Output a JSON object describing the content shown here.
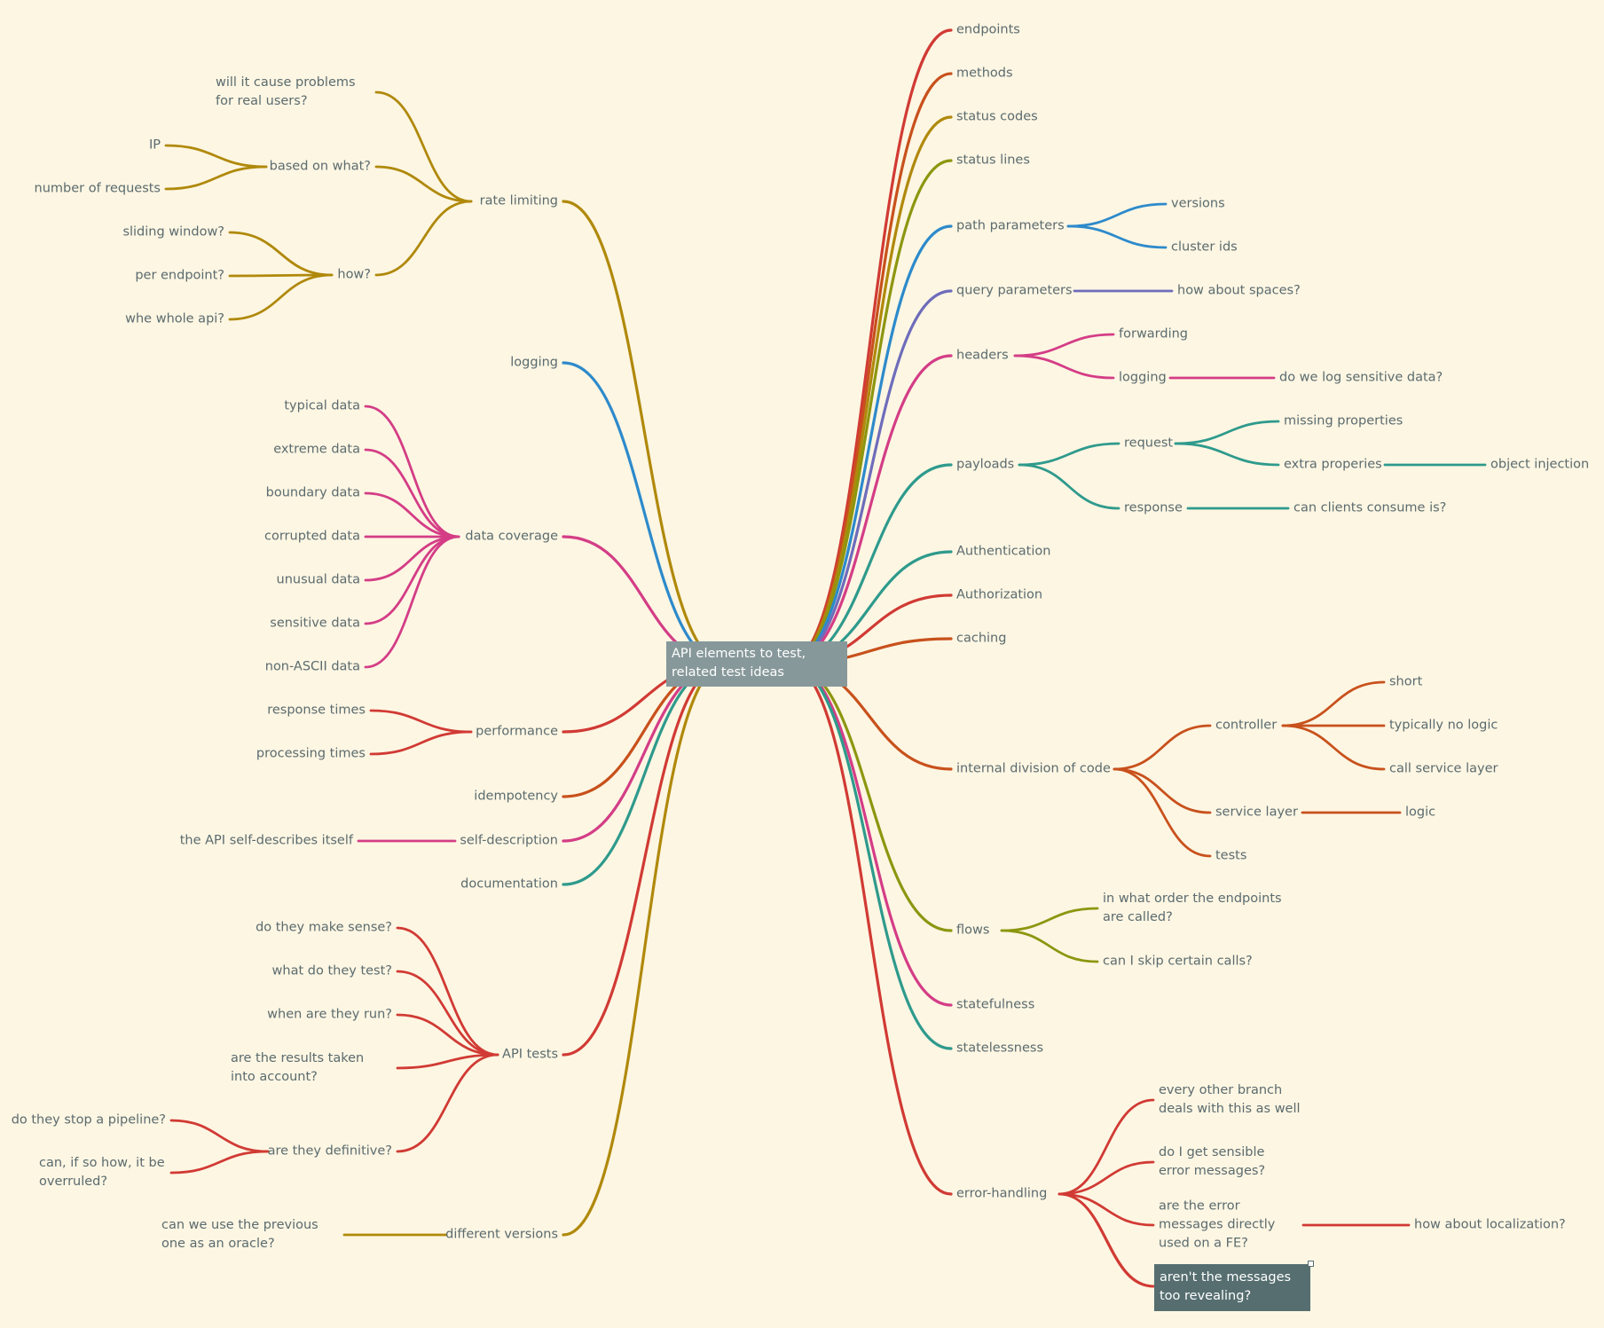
{
  "root": "API elements to test, related test ideas",
  "selected_node": "aren't the messages too revealing?",
  "colors": {
    "background": "#fdf6e3",
    "red": "#d13a34",
    "orange": "#c8511c",
    "gold": "#b0890b",
    "olive": "#8d960f",
    "blue": "#2d8acb",
    "purple": "#6e6cbb",
    "pink": "#d43d86",
    "teal": "#2e9a8c",
    "text": "#5b6b6e",
    "root_fill": "#87989a",
    "selected_fill": "#566e70"
  },
  "right_branches": [
    {
      "label": "endpoints",
      "color": "red"
    },
    {
      "label": "methods",
      "color": "orange"
    },
    {
      "label": "status codes",
      "color": "gold"
    },
    {
      "label": "status lines",
      "color": "olive"
    },
    {
      "label": "path parameters",
      "color": "blue",
      "children": [
        {
          "label": "versions"
        },
        {
          "label": "cluster ids"
        }
      ]
    },
    {
      "label": "query parameters",
      "color": "purple",
      "children": [
        {
          "label": "how about spaces?"
        }
      ]
    },
    {
      "label": "headers",
      "color": "pink",
      "children": [
        {
          "label": "forwarding"
        },
        {
          "label": "logging",
          "children": [
            {
              "label": "do we log sensitive data?"
            }
          ]
        }
      ]
    },
    {
      "label": "payloads",
      "color": "teal",
      "children": [
        {
          "label": "request",
          "children": [
            {
              "label": "missing properties"
            },
            {
              "label": "extra properies",
              "children": [
                {
                  "label": "object injection"
                }
              ]
            }
          ]
        },
        {
          "label": "response",
          "children": [
            {
              "label": "can clients consume is?"
            }
          ]
        }
      ]
    },
    {
      "label": "Authentication",
      "color": "teal"
    },
    {
      "label": "Authorization",
      "color": "red"
    },
    {
      "label": "caching",
      "color": "orange"
    },
    {
      "label": "internal division of code",
      "color": "orange",
      "children": [
        {
          "label": "controller",
          "children": [
            {
              "label": "short"
            },
            {
              "label": "typically no logic"
            },
            {
              "label": "call service layer"
            }
          ]
        },
        {
          "label": "service layer",
          "children": [
            {
              "label": "logic"
            }
          ]
        },
        {
          "label": "tests"
        }
      ]
    },
    {
      "label": "flows",
      "color": "olive",
      "children": [
        {
          "label": "in what order the endpoints are called?"
        },
        {
          "label": "can I skip certain calls?"
        }
      ]
    },
    {
      "label": "statefulness",
      "color": "pink"
    },
    {
      "label": "statelessness",
      "color": "teal"
    },
    {
      "label": "error-handling",
      "color": "red",
      "children": [
        {
          "label": "every other branch deals with this as well"
        },
        {
          "label": "do I get sensible error messages?"
        },
        {
          "label": "are the error messages directly used on a FE?",
          "children": [
            {
              "label": "how about localization?"
            }
          ]
        },
        {
          "label": "aren't the messages too revealing?"
        }
      ]
    }
  ],
  "left_branches": [
    {
      "label": "rate limiting",
      "color": "gold",
      "children": [
        {
          "label": "will it cause problems for real users?"
        },
        {
          "label": "based on what?",
          "children": [
            {
              "label": "IP"
            },
            {
              "label": "number of requests"
            }
          ]
        },
        {
          "label": "how?",
          "children": [
            {
              "label": "sliding window?"
            },
            {
              "label": "per endpoint?"
            },
            {
              "label": "whe whole api?"
            }
          ]
        }
      ]
    },
    {
      "label": "logging",
      "color": "blue"
    },
    {
      "label": "data coverage",
      "color": "pink",
      "children": [
        {
          "label": "typical data"
        },
        {
          "label": "extreme data"
        },
        {
          "label": "boundary data"
        },
        {
          "label": "corrupted data"
        },
        {
          "label": "unusual data"
        },
        {
          "label": "sensitive data"
        },
        {
          "label": "non-ASCII data"
        }
      ]
    },
    {
      "label": "performance",
      "color": "red",
      "children": [
        {
          "label": "response times"
        },
        {
          "label": "processing times"
        }
      ]
    },
    {
      "label": "idempotency",
      "color": "orange"
    },
    {
      "label": "self-description",
      "color": "pink",
      "children": [
        {
          "label": "the API self-describes itself"
        }
      ]
    },
    {
      "label": "documentation",
      "color": "teal"
    },
    {
      "label": "API tests",
      "color": "red",
      "children": [
        {
          "label": "do they make sense?"
        },
        {
          "label": "what do they test?"
        },
        {
          "label": "when are they run?"
        },
        {
          "label": "are the results taken into account?"
        },
        {
          "label": "are they definitive?",
          "children": [
            {
              "label": "do they stop a pipeline?"
            },
            {
              "label": "can, if so how, it be overruled?"
            }
          ]
        }
      ]
    },
    {
      "label": "different versions",
      "color": "gold",
      "children": [
        {
          "label": "can we use the previous one as an oracle?"
        }
      ]
    }
  ]
}
